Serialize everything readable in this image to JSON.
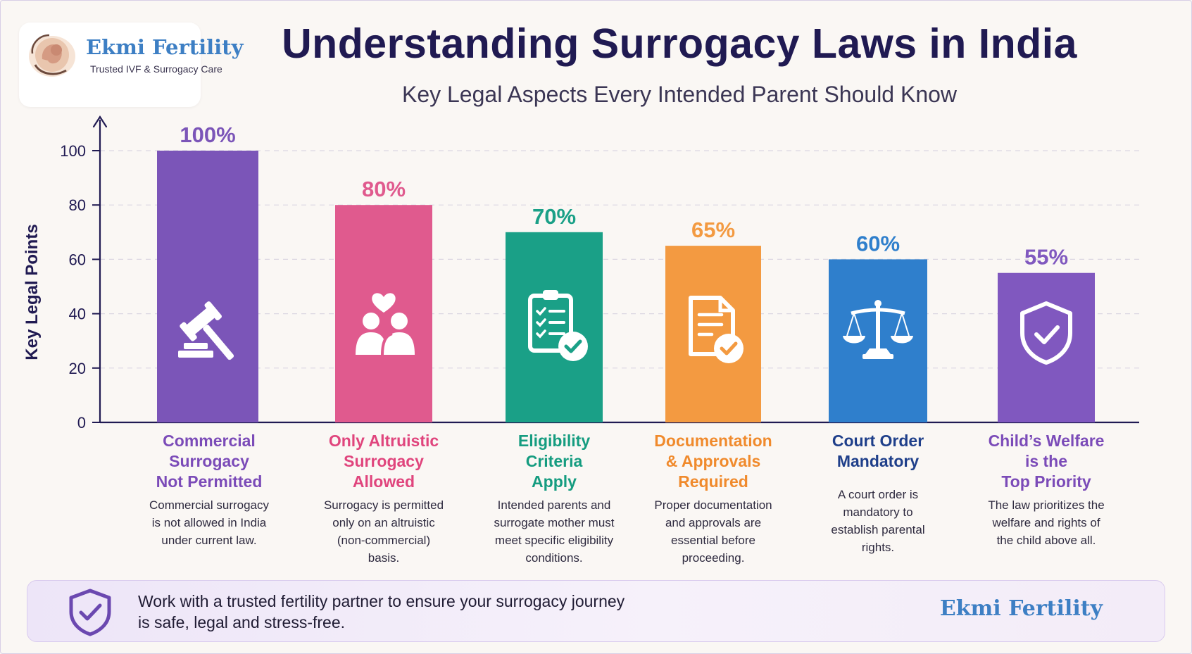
{
  "brand": {
    "name": "Ekmi Fertility",
    "tagline": "Trusted IVF & Surrogacy Care"
  },
  "title": "Understanding Surrogacy Laws in India",
  "subtitle": "Key Legal Aspects Every Intended Parent Should Know",
  "colors": {
    "title": "#201a52",
    "purple": "#7b55b8",
    "pink": "#e05a8e",
    "teal": "#1aa087",
    "orange": "#f39a41",
    "blue": "#2f7fcc",
    "violet": "#8058bf",
    "brand": "#3d7fc4"
  },
  "chart_data": {
    "type": "bar",
    "ylabel": "Key Legal Points",
    "xlabel": "",
    "ylim": [
      0,
      100
    ],
    "yticks": [
      "0",
      "20",
      "40",
      "60",
      "80",
      "100"
    ],
    "grid": true,
    "categories": [
      "Commercial Surrogacy Not Permitted",
      "Only Altruistic Surrogacy Allowed",
      "Eligibility Criteria Apply",
      "Documentation & Approvals Required",
      "Court Order Mandatory",
      "Child’s Welfare is the Top Priority"
    ],
    "values": [
      100,
      80,
      70,
      65,
      60,
      55
    ],
    "value_labels": [
      "100%",
      "80%",
      "70%",
      "65%",
      "60%",
      "55%"
    ],
    "bar_colors": [
      "#7b55b8",
      "#e05a8e",
      "#1aa087",
      "#f39a41",
      "#2f7fcc",
      "#8058bf"
    ],
    "label_colors": [
      "#7b4bb8",
      "#e0457d",
      "#159c80",
      "#f08a2c",
      "#1f3f8a",
      "#7b4bb8"
    ],
    "bar_icons": [
      "gavel-icon",
      "people-heart-icon",
      "clipboard-check-icon",
      "document-check-icon",
      "scales-icon",
      "shield-check-icon"
    ]
  },
  "categories": [
    {
      "title_lines": [
        "Commercial",
        "Surrogacy",
        "Not Permitted"
      ],
      "desc_lines": [
        "Commercial surrogacy",
        "is not allowed in India",
        "under current law."
      ]
    },
    {
      "title_lines": [
        "Only Altruistic",
        "Surrogacy",
        "Allowed"
      ],
      "desc_lines": [
        "Surrogacy is permitted",
        "only on an altruistic",
        "(non-commercial)",
        "basis."
      ]
    },
    {
      "title_lines": [
        "Eligibility",
        "Criteria",
        "Apply"
      ],
      "desc_lines": [
        "Intended parents and",
        "surrogate mother must",
        "meet specific eligibility",
        "conditions."
      ]
    },
    {
      "title_lines": [
        "Documentation",
        "& Approvals",
        "Required"
      ],
      "desc_lines": [
        "Proper documentation",
        "and approvals are",
        "essential before",
        "proceeding."
      ]
    },
    {
      "title_lines": [
        "Court Order",
        "Mandatory"
      ],
      "desc_lines": [
        "A court order is",
        "mandatory to",
        "establish parental",
        "rights."
      ]
    },
    {
      "title_lines": [
        "Child’s Welfare",
        "is the",
        "Top Priority"
      ],
      "desc_lines": [
        "The law prioritizes the",
        "welfare and rights of",
        "the child above all."
      ]
    }
  ],
  "footer": {
    "line1": "Work with a trusted fertility partner to ensure your surrogacy journey",
    "line2": "is safe, legal and stress-free.",
    "brand": "Ekmi Fertility"
  }
}
